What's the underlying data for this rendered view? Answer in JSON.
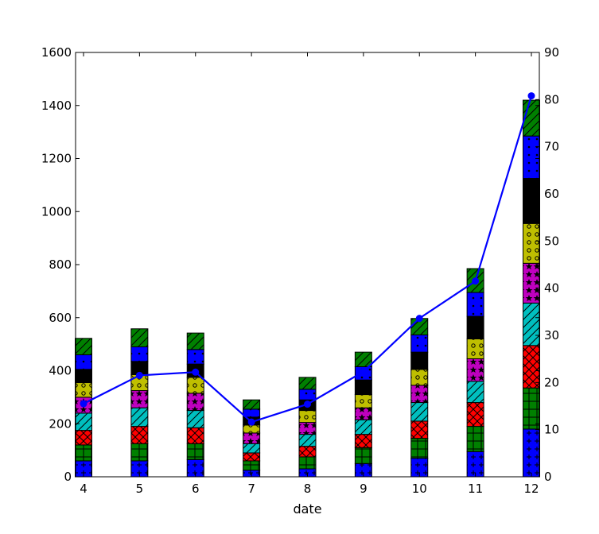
{
  "chart_data": {
    "type": "bar",
    "stacked": true,
    "categories": [
      "4",
      "5",
      "6",
      "7",
      "8",
      "9",
      "10",
      "11",
      "12"
    ],
    "xlabel": "date",
    "ylabel": "",
    "y2label": "",
    "ylim": [
      0,
      1600
    ],
    "y_ticks": [
      "0",
      "200",
      "400",
      "600",
      "800",
      "1000",
      "1200",
      "1400",
      "1600"
    ],
    "y2lim": [
      0,
      90
    ],
    "y2_ticks": [
      "0",
      "10",
      "20",
      "30",
      "40",
      "50",
      "60",
      "70",
      "80",
      "90"
    ],
    "grid": false,
    "legend": "none",
    "series": [
      {
        "color": "#0000ff",
        "hatch": "plus",
        "values": [
          60,
          60,
          65,
          25,
          30,
          50,
          70,
          95,
          180
        ]
      },
      {
        "color": "#008000",
        "hatch": "grid",
        "values": [
          60,
          65,
          60,
          35,
          45,
          60,
          75,
          95,
          155
        ]
      },
      {
        "color": "#ff0000",
        "hatch": "cross",
        "values": [
          55,
          65,
          60,
          30,
          40,
          50,
          65,
          90,
          160
        ]
      },
      {
        "color": "#00bfbf",
        "hatch": "diag",
        "values": [
          65,
          70,
          65,
          35,
          45,
          55,
          70,
          80,
          160
        ]
      },
      {
        "color": "#bf00bf",
        "hatch": "star",
        "values": [
          60,
          65,
          65,
          40,
          45,
          45,
          65,
          85,
          150
        ]
      },
      {
        "color": "#bfbf00",
        "hatch": "circle",
        "values": [
          55,
          60,
          60,
          30,
          45,
          50,
          60,
          75,
          150
        ]
      },
      {
        "color": "#000000",
        "hatch": "none",
        "values": [
          50,
          50,
          50,
          30,
          40,
          55,
          65,
          85,
          170
        ]
      },
      {
        "color": "#0000ff",
        "hatch": "dot",
        "values": [
          55,
          55,
          55,
          30,
          40,
          50,
          65,
          90,
          160
        ]
      },
      {
        "color": "#008000",
        "hatch": "diag",
        "values": [
          62,
          68,
          62,
          35,
          45,
          55,
          62,
          90,
          135
        ]
      }
    ],
    "line": {
      "color": "#0000ff",
      "axis": "secondary",
      "values": [
        15.5,
        21.5,
        22.2,
        11.6,
        15.4,
        22.3,
        33.6,
        41.5,
        80.8
      ]
    }
  }
}
